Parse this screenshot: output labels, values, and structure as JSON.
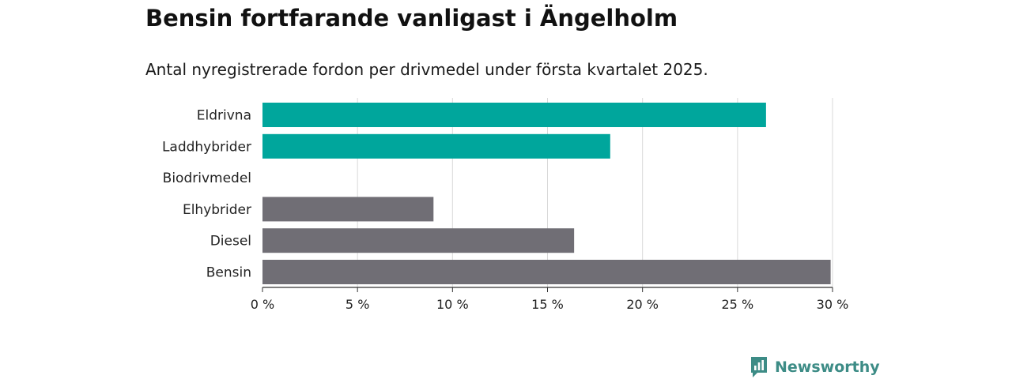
{
  "header": {
    "title": "Bensin fortfarande vanligast i Ängelholm",
    "subtitle": "Antal nyregistrerade fordon per drivmedel under första kvartalet 2025."
  },
  "brand": {
    "name": "Newsworthy",
    "color": "#3d8c86",
    "icon": "newsworthy-logo-icon"
  },
  "chart_data": {
    "type": "bar",
    "orientation": "horizontal",
    "categories": [
      "Eldrivna",
      "Laddhybrider",
      "Biodrivmedel",
      "Elhybrider",
      "Diesel",
      "Bensin"
    ],
    "values": [
      26.5,
      18.3,
      0,
      9.0,
      16.4,
      29.9
    ],
    "colors": [
      "#00a69c",
      "#00a69c",
      "#00a69c",
      "#706e75",
      "#706e75",
      "#706e75"
    ],
    "xlim": [
      0,
      30
    ],
    "xticks": [
      0,
      5,
      10,
      15,
      20,
      25,
      30
    ],
    "xtick_labels": [
      "0 %",
      "5 %",
      "10 %",
      "15 %",
      "20 %",
      "25 %",
      "30 %"
    ],
    "grid": true,
    "xlabel": "",
    "ylabel": ""
  }
}
